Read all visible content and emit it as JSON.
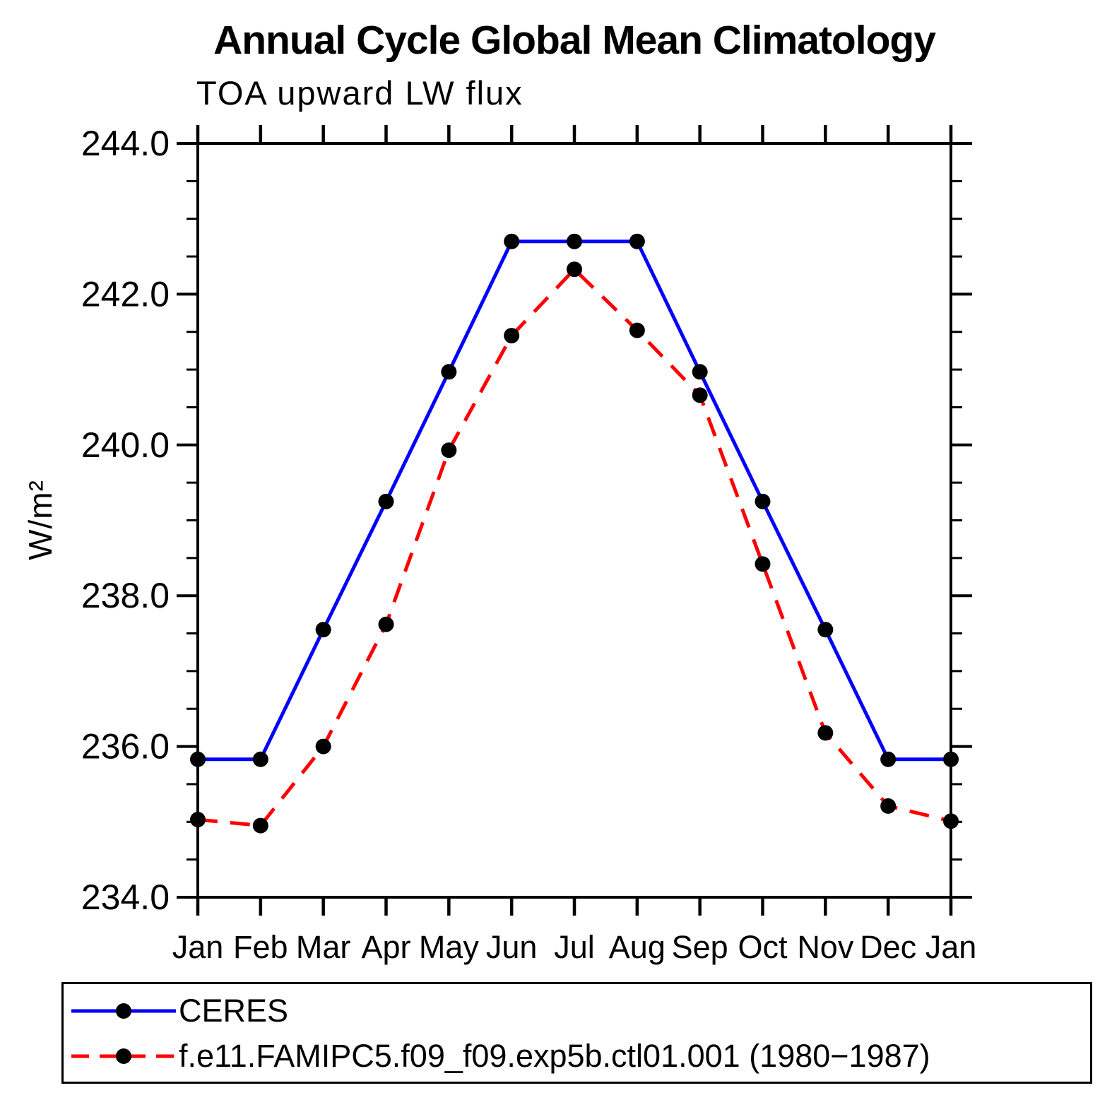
{
  "chart_data": {
    "type": "line",
    "title": "Annual Cycle Global Mean Climatology",
    "subtitle": "TOA upward LW flux",
    "xlabel": "",
    "ylabel": "W/m²",
    "categories": [
      "Jan",
      "Feb",
      "Mar",
      "Apr",
      "May",
      "Jun",
      "Jul",
      "Aug",
      "Sep",
      "Oct",
      "Nov",
      "Dec",
      "Jan"
    ],
    "ylim": [
      234.0,
      244.0
    ],
    "y_ticks": {
      "values": [
        244,
        242,
        240,
        238,
        236,
        234
      ],
      "labels": [
        "244.0",
        "242.0",
        "240.0",
        "238.0",
        "236.0",
        "234.0"
      ]
    },
    "y_minor_step": 0.5,
    "grid": false,
    "legend_position": "bottom-left-box",
    "colors": {
      "axis": "#000000",
      "background": "#ffffff"
    },
    "series": [
      {
        "name": "CERES",
        "color": "#0000ff",
        "line_style": "solid",
        "marker": "filled-circle",
        "marker_color": "#000000",
        "values": [
          235.83,
          235.83,
          237.55,
          239.25,
          240.97,
          242.7,
          242.7,
          242.7,
          240.97,
          239.25,
          237.55,
          235.83,
          235.83
        ]
      },
      {
        "name": "f.e11.FAMIPC5.f09_f09.exp5b.ctl01.001 (1980−1987)",
        "color": "#ff0000",
        "line_style": "dashed",
        "marker": "filled-circle",
        "marker_color": "#000000",
        "values": [
          235.03,
          234.95,
          236.0,
          237.62,
          239.93,
          241.45,
          242.33,
          241.52,
          240.66,
          238.42,
          236.18,
          235.21,
          235.01
        ]
      }
    ]
  }
}
